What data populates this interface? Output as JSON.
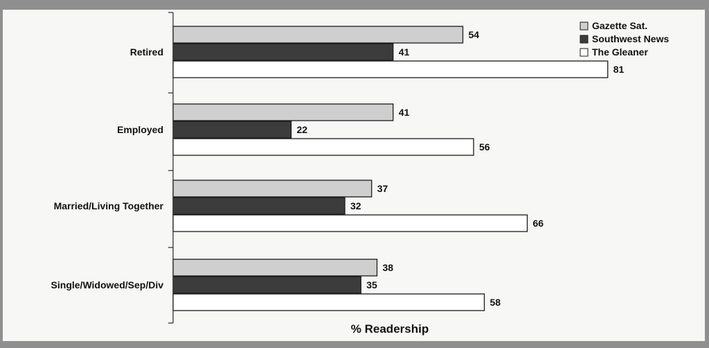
{
  "chart_data": {
    "type": "bar",
    "orientation": "horizontal",
    "categories": [
      "Retired",
      "Employed",
      "Married/Living Together",
      "Single/Widowed/Sep/Div"
    ],
    "series": [
      {
        "name": "Gazette Sat.",
        "values": [
          54,
          41,
          37,
          38
        ],
        "color": "#cfcfcf"
      },
      {
        "name": "Southwest News",
        "values": [
          41,
          22,
          32,
          35
        ],
        "color": "#3c3c3c"
      },
      {
        "name": "The Gleaner",
        "values": [
          81,
          56,
          66,
          58
        ],
        "color": "#ffffff"
      }
    ],
    "xlabel": "% Readership",
    "xlim": [
      0,
      100
    ],
    "grid": false,
    "legend_position": "top-right"
  }
}
